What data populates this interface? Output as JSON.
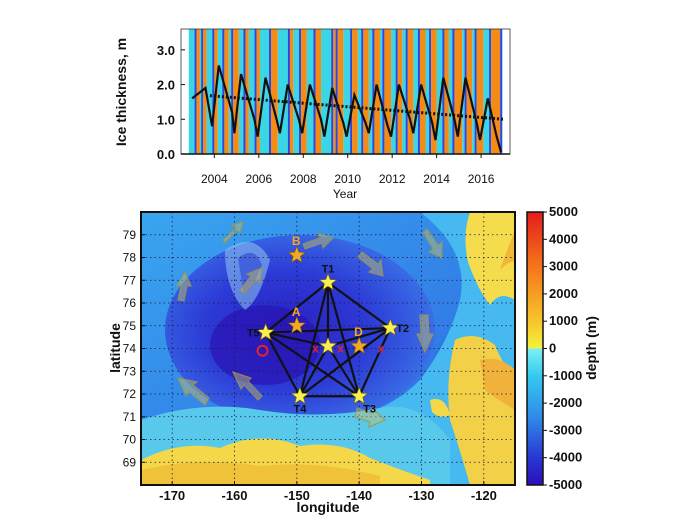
{
  "colors": {
    "open_water": "#f58a14",
    "ice_band": "#3ad6e6",
    "ice_band_dark": "#3344e0",
    "star": "#f8f04a",
    "star_orange": "#f5a623",
    "site_label_orange": "#f5a623"
  },
  "chart_data": [
    {
      "type": "line",
      "ylabel": "Ice thickness, m",
      "xlabel": "Year",
      "xlim": [
        2002.5,
        2017.3
      ],
      "ylim": [
        0,
        3.6
      ],
      "x_ticks": [
        2004,
        2006,
        2008,
        2010,
        2012,
        2014,
        2016
      ],
      "y_ticks": [
        "0.0",
        "1.0",
        "2.0",
        "3.0"
      ],
      "y_tick_values": [
        0,
        1,
        2,
        3
      ],
      "trend": {
        "x": [
          2003.8,
          2017.0
        ],
        "y": [
          1.68,
          1.0
        ]
      },
      "series": [
        {
          "x": [
            2003.0,
            2003.6,
            2003.9,
            2004.2,
            2004.8,
            2004.9,
            2005.2,
            2005.8,
            2005.95,
            2006.3,
            2006.8,
            2006.95,
            2007.3,
            2007.8,
            2007.95,
            2008.3,
            2008.8,
            2008.95,
            2009.3,
            2009.8,
            2009.95,
            2010.3,
            2010.8,
            2010.95,
            2011.3,
            2011.8,
            2011.95,
            2012.3,
            2012.8,
            2012.95,
            2013.3,
            2013.8,
            2013.95,
            2014.3,
            2014.8,
            2014.95,
            2015.3,
            2015.8,
            2015.95,
            2016.3,
            2016.7,
            2016.9
          ],
          "y": [
            1.6,
            1.9,
            0.8,
            2.55,
            1.2,
            0.6,
            2.3,
            1.0,
            0.5,
            2.2,
            1.0,
            0.6,
            2.0,
            1.0,
            0.6,
            2.0,
            1.0,
            0.5,
            1.9,
            0.9,
            0.5,
            1.7,
            0.9,
            0.6,
            2.0,
            0.8,
            0.5,
            2.0,
            1.0,
            0.6,
            2.0,
            0.9,
            0.4,
            2.2,
            1.0,
            0.5,
            2.2,
            0.9,
            0.4,
            1.6,
            0.5,
            0.05
          ]
        }
      ],
      "open_water_bands": [
        [
          2003.2,
          2003.35
        ],
        [
          2003.5,
          2003.65
        ],
        [
          2004.0,
          2004.15
        ],
        [
          2004.45,
          2004.65
        ],
        [
          2004.85,
          2005.1
        ],
        [
          2005.4,
          2005.55
        ],
        [
          2005.9,
          2006.05
        ],
        [
          2006.55,
          2006.85
        ],
        [
          2007.4,
          2007.55
        ],
        [
          2007.9,
          2008.15
        ],
        [
          2008.55,
          2008.8
        ],
        [
          2009.35,
          2009.45
        ],
        [
          2009.55,
          2009.8
        ],
        [
          2010.2,
          2010.45
        ],
        [
          2010.7,
          2010.95
        ],
        [
          2011.2,
          2011.45
        ],
        [
          2011.65,
          2011.95
        ],
        [
          2012.25,
          2012.45
        ],
        [
          2012.7,
          2012.95
        ],
        [
          2013.25,
          2013.5
        ],
        [
          2013.75,
          2014.0
        ],
        [
          2014.35,
          2014.55
        ],
        [
          2014.8,
          2015.15
        ],
        [
          2015.35,
          2015.6
        ],
        [
          2015.8,
          2016.1
        ],
        [
          2016.45,
          2016.85
        ]
      ],
      "ice_bands": [
        [
          2002.85,
          2003.2
        ],
        [
          2003.35,
          2003.5
        ],
        [
          2003.65,
          2004.0
        ],
        [
          2004.15,
          2004.45
        ],
        [
          2004.65,
          2004.85
        ],
        [
          2005.1,
          2005.4
        ],
        [
          2005.55,
          2005.9
        ],
        [
          2006.05,
          2006.55
        ],
        [
          2006.85,
          2007.4
        ],
        [
          2007.55,
          2007.9
        ],
        [
          2008.15,
          2008.55
        ],
        [
          2008.8,
          2009.35
        ],
        [
          2009.45,
          2009.55
        ],
        [
          2009.8,
          2010.2
        ],
        [
          2010.45,
          2010.7
        ],
        [
          2010.95,
          2011.2
        ],
        [
          2011.45,
          2011.65
        ],
        [
          2011.95,
          2012.25
        ],
        [
          2012.45,
          2012.7
        ],
        [
          2012.95,
          2013.25
        ],
        [
          2013.5,
          2013.75
        ],
        [
          2014.0,
          2014.35
        ],
        [
          2014.55,
          2014.8
        ],
        [
          2015.15,
          2015.35
        ],
        [
          2015.6,
          2015.8
        ],
        [
          2016.1,
          2016.45
        ],
        [
          2016.85,
          2016.95
        ]
      ]
    },
    {
      "type": "map",
      "xlabel": "longitude",
      "ylabel": "latitude",
      "xlim": [
        -175,
        -115
      ],
      "ylim": [
        68,
        80
      ],
      "x_ticks": [
        -170,
        -160,
        -150,
        -140,
        -130,
        -120
      ],
      "y_ticks": [
        69,
        70,
        71,
        72,
        73,
        74,
        75,
        76,
        77,
        78,
        79
      ],
      "colorbar": {
        "label": "depth (m)",
        "range": [
          -5000,
          5000
        ],
        "ticks": [
          5000,
          4000,
          3000,
          2000,
          1000,
          0,
          -1000,
          -2000,
          -3000,
          -4000,
          -5000
        ]
      },
      "moorings": [
        {
          "label": "T1",
          "lon": -145.0,
          "lat": 76.9
        },
        {
          "label": "T2",
          "lon": -135.0,
          "lat": 74.9
        },
        {
          "label": "T3",
          "lon": -140.0,
          "lat": 71.9
        },
        {
          "label": "T4",
          "lon": -149.5,
          "lat": 71.9
        },
        {
          "label": "T5",
          "lon": -155.0,
          "lat": 74.7
        },
        {
          "label": "",
          "lon": -145.0,
          "lat": 74.1
        }
      ],
      "sites": [
        {
          "label": "B",
          "lon": -150.0,
          "lat": 78.1
        },
        {
          "label": "A",
          "lon": -150.0,
          "lat": 75.0
        },
        {
          "label": "D",
          "lon": -140.0,
          "lat": 74.1
        }
      ],
      "site_marks": [
        {
          "label": "O",
          "lon": -155.5,
          "lat": 73.9
        },
        {
          "label": "x",
          "lon": -147.0,
          "lat": 74.0
        },
        {
          "label": "x",
          "lon": -143.0,
          "lat": 74.0
        },
        {
          "label": "x",
          "lon": -136.5,
          "lat": 74.0
        }
      ]
    }
  ]
}
